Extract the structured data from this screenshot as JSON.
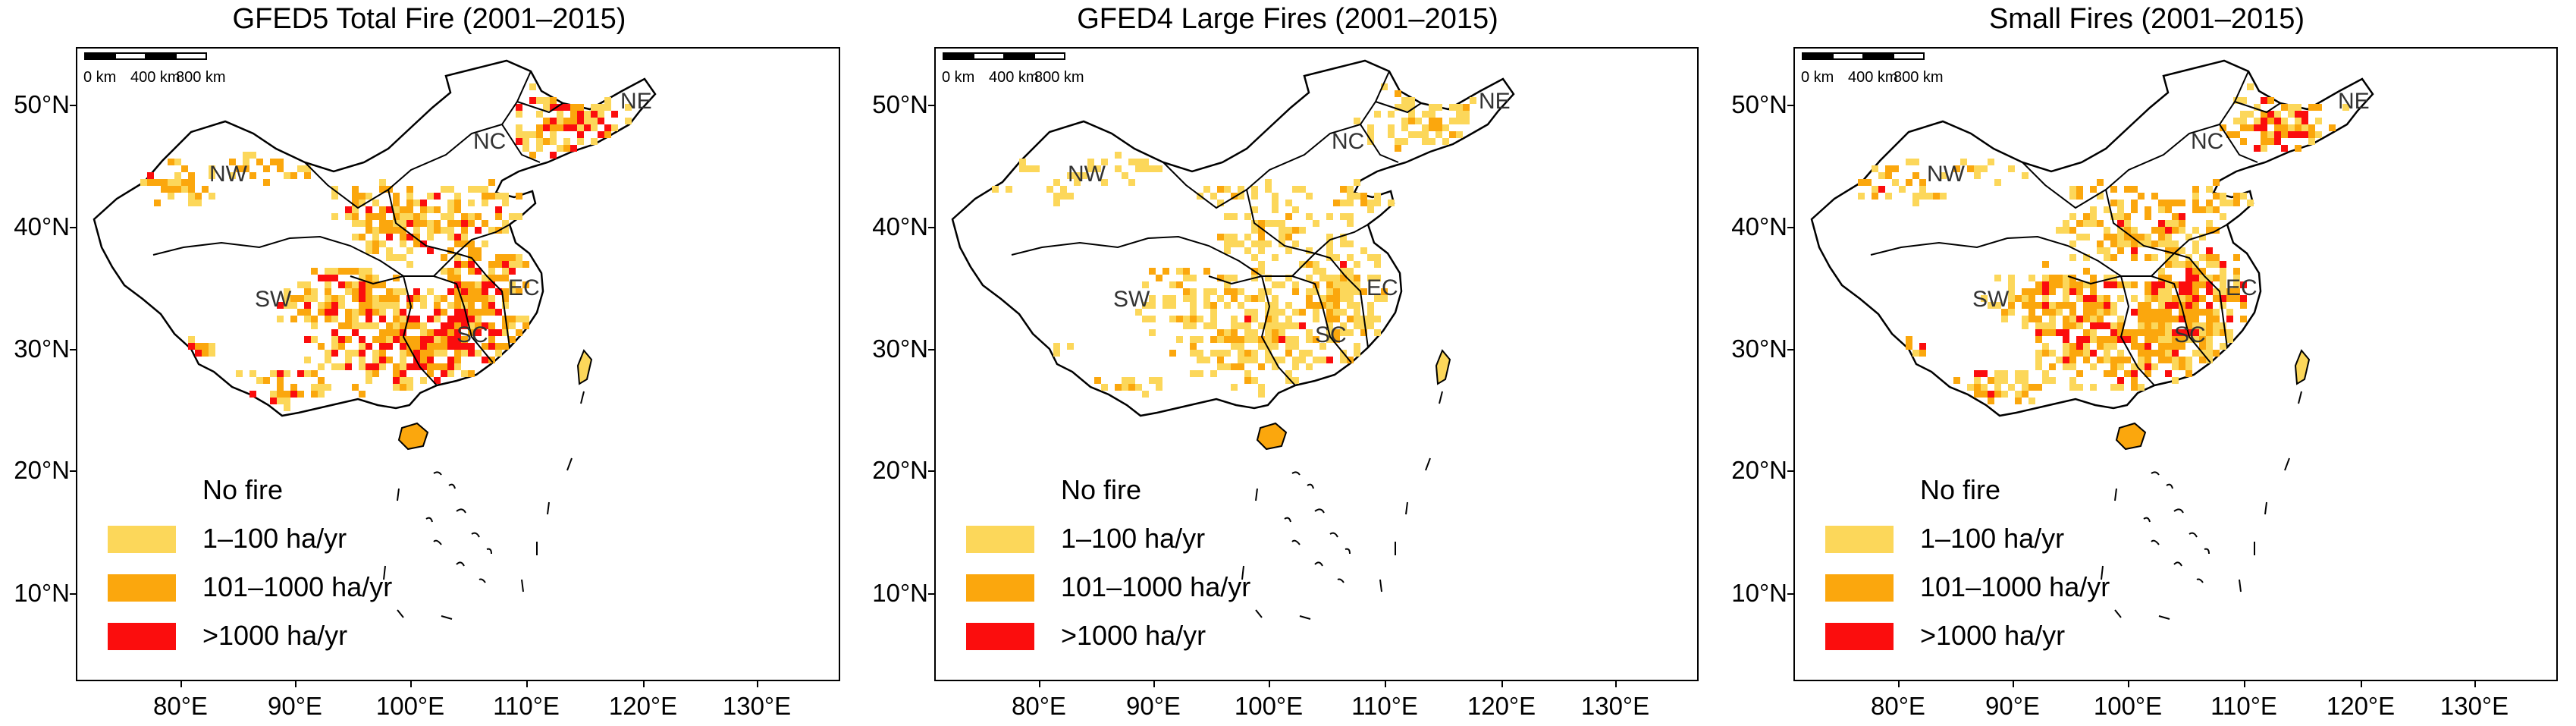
{
  "colors": {
    "no_fire": "#ffffff",
    "low": "#fcd75a",
    "mid": "#fba70d",
    "high": "#fb0d0d",
    "boundary": "#000000"
  },
  "axes": {
    "y_ticks": [
      "50°N",
      "40°N",
      "30°N",
      "20°N",
      "10°N"
    ],
    "x_ticks": [
      "80°E",
      "90°E",
      "100°E",
      "110°E",
      "120°E",
      "130°E"
    ]
  },
  "legend": {
    "items": [
      {
        "label": "No fire",
        "color_key": "no_fire"
      },
      {
        "label": "1–100 ha/yr",
        "color_key": "low"
      },
      {
        "label": "101–1000 ha/yr",
        "color_key": "mid"
      },
      {
        "label": ">1000 ha/yr",
        "color_key": "high"
      }
    ]
  },
  "regions": [
    "NW",
    "NC",
    "NE",
    "SW",
    "SC",
    "EC"
  ],
  "scalebar": {
    "labels": [
      "0 km",
      "400 km",
      "800 km"
    ]
  },
  "panels": [
    {
      "title": "GFED5 Total Fire (2001–2015)"
    },
    {
      "title": "GFED4 Large Fires (2001–2015)"
    },
    {
      "title": "Small Fires (2001–2015)"
    }
  ]
}
